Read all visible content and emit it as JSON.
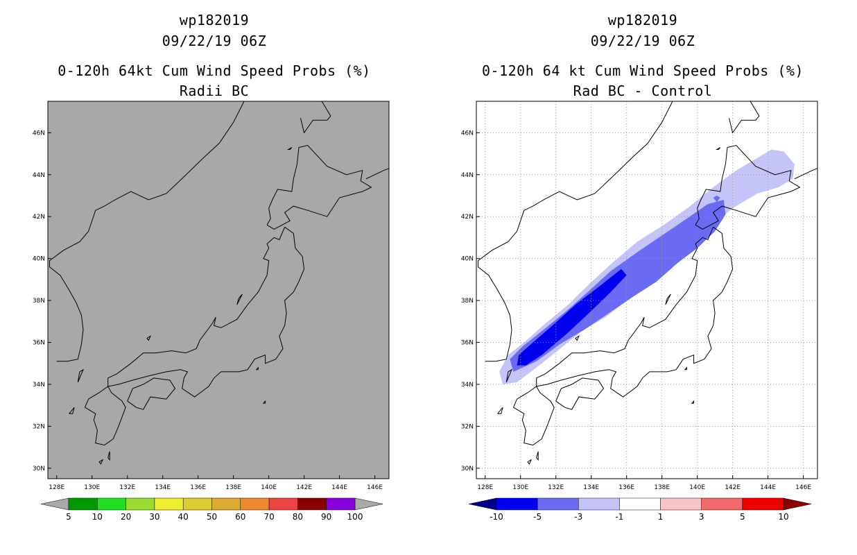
{
  "panels": [
    {
      "storm_id": "wp182019",
      "datetime": "09/22/19 06Z",
      "title": "0-120h 64kt Cum Wind Speed Probs (%)",
      "subtitle": "Radii BC",
      "map_background": "#a8a8a8",
      "colorbar": {
        "colors": [
          "#009900",
          "#22dd22",
          "#99dd33",
          "#eeee33",
          "#ddcc33",
          "#ddaa33",
          "#ee8833",
          "#ee4444",
          "#880000",
          "#8800dd"
        ],
        "end_color": "#a8a8a8",
        "labels": [
          "5",
          "10",
          "20",
          "30",
          "40",
          "50",
          "60",
          "70",
          "80",
          "90",
          "100"
        ]
      }
    },
    {
      "storm_id": "wp182019",
      "datetime": "09/22/19 06Z",
      "title": "0-120h 64 kt Cum Wind Speed Probs (%)",
      "subtitle": "Rad BC - Control",
      "map_background": "#ffffff",
      "colorbar": {
        "colors": [
          "#0000ee",
          "#6a6af2",
          "#c4c4f8",
          "#ffffff",
          "#f8c4c4",
          "#f26a6a",
          "#ee0000"
        ],
        "low_end_color": "#00008a",
        "high_end_color": "#8a0000",
        "labels": [
          "-10",
          "-5",
          "-3",
          "-1",
          "1",
          "3",
          "5",
          "10"
        ]
      }
    }
  ],
  "map": {
    "lon_labels": [
      "128E",
      "130E",
      "132E",
      "134E",
      "136E",
      "138E",
      "140E",
      "142E",
      "144E",
      "146E"
    ],
    "lat_labels": [
      "46N",
      "44N",
      "42N",
      "40N",
      "38N",
      "36N",
      "34N",
      "32N",
      "30N"
    ]
  },
  "legend_colors": {
    "diff_-10_to_-5": "#0000ee",
    "diff_-5_to_-3": "#6a6af2",
    "diff_-3_to_-1": "#c4c4f8"
  }
}
